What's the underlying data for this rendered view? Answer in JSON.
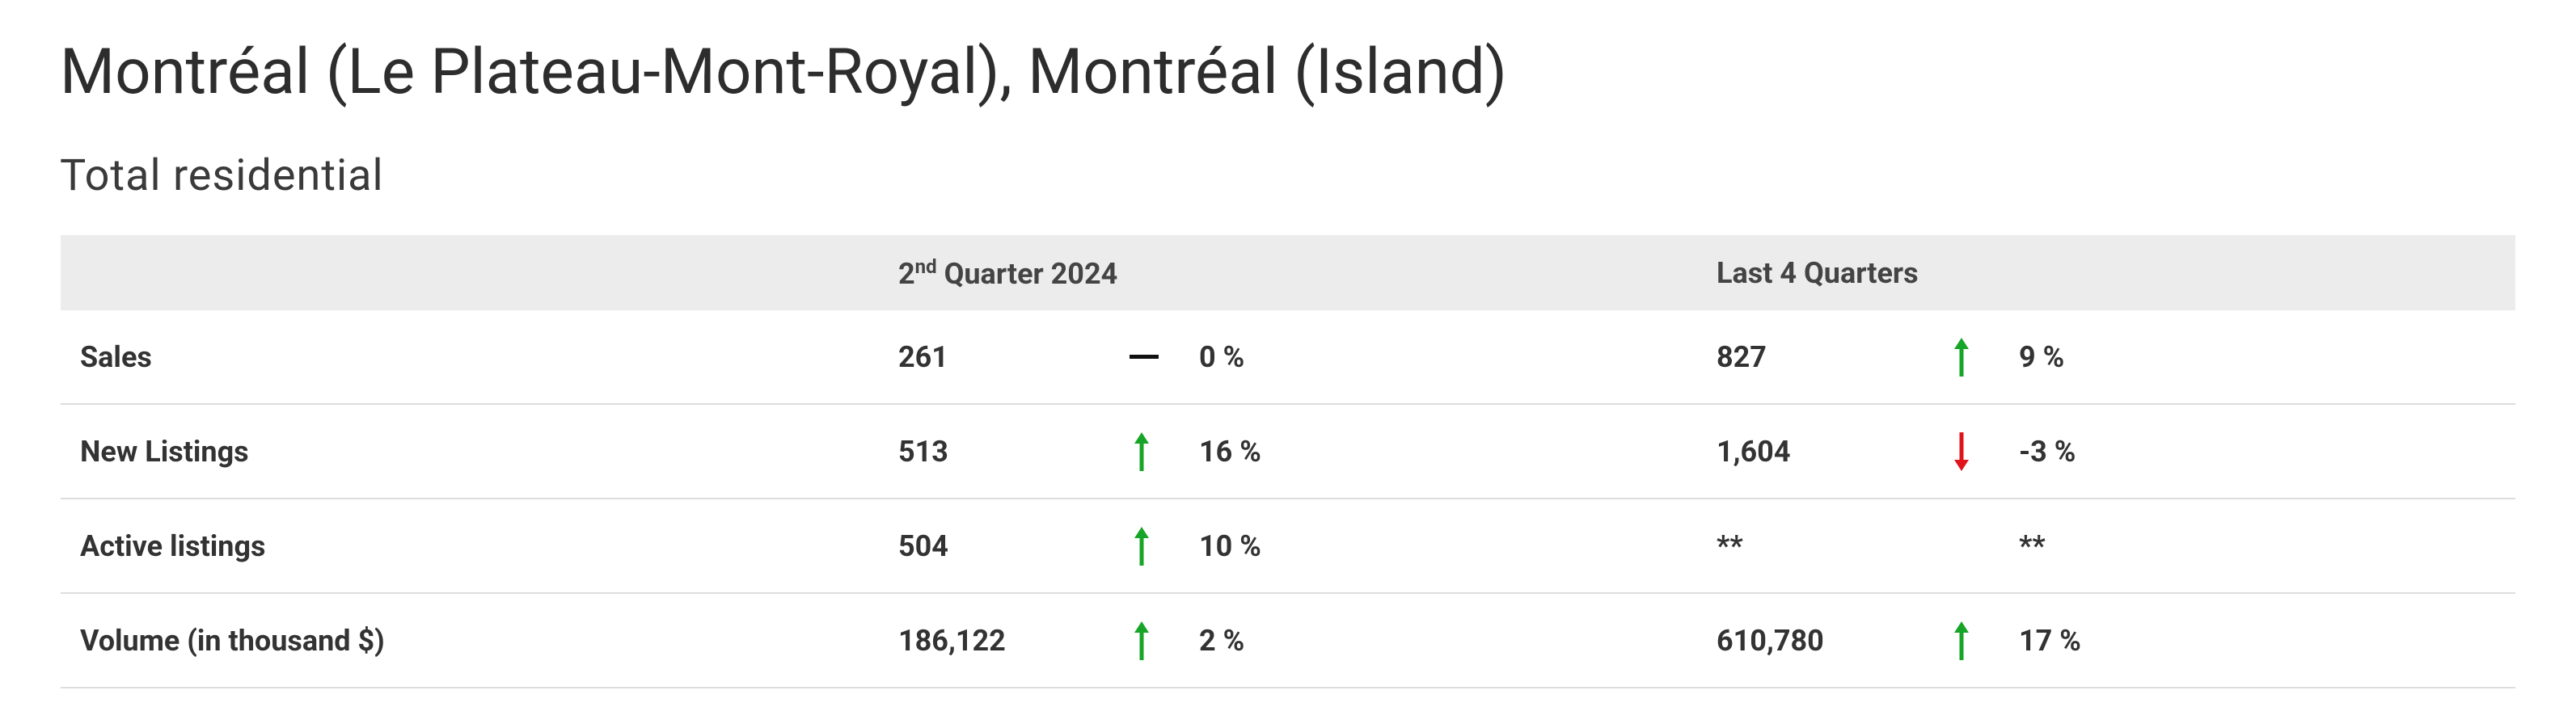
{
  "header": {
    "title": "Montréal (Le Plateau-Mont-Royal), Montréal (Island)",
    "subtitle": "Total residential"
  },
  "table": {
    "columns": [
      {
        "number": "2",
        "suffix": "nd",
        "rest": " Quarter 2024"
      },
      {
        "text": "Last 4 Quarters"
      }
    ],
    "rows": [
      {
        "label": "Sales",
        "cells": [
          {
            "value": "261",
            "trend": "flat",
            "change": "0 %"
          },
          {
            "value": "827",
            "trend": "up",
            "change": "9 %"
          }
        ]
      },
      {
        "label": "New Listings",
        "cells": [
          {
            "value": "513",
            "trend": "up",
            "change": "16 %"
          },
          {
            "value": "1,604",
            "trend": "down",
            "change": "-3 %"
          }
        ]
      },
      {
        "label": "Active listings",
        "cells": [
          {
            "value": "504",
            "trend": "up",
            "change": "10 %"
          },
          {
            "value": "**",
            "trend": "none",
            "change": "**"
          }
        ]
      },
      {
        "label": "Volume (in thousand $)",
        "cells": [
          {
            "value": "186,122",
            "trend": "up",
            "change": "2 %"
          },
          {
            "value": "610,780",
            "trend": "up",
            "change": "17 %"
          }
        ]
      }
    ]
  }
}
